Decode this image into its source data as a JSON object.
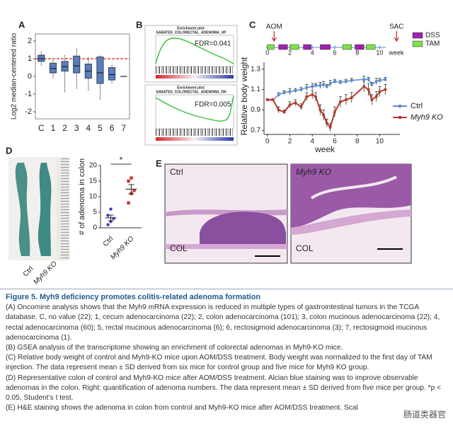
{
  "figure": {
    "panel_labels": [
      "A",
      "B",
      "C",
      "D",
      "E"
    ],
    "gsea": [
      {
        "title_lines": [
          "Enrichment plot:",
          "SABATES_COLORECTAL_ADENOMA_UP"
        ],
        "fdr": "FDR=0.041"
      },
      {
        "title_lines": [
          "Enrichment plot:",
          "SABATES_COLORECTAL_ADENOMA_DN"
        ],
        "fdr": "FDR=0.005"
      }
    ],
    "colon_photo": {
      "labels": [
        "Ctrl",
        "Myh9 KO"
      ]
    },
    "histology": [
      {
        "label": "Ctrl",
        "region": "COL"
      },
      {
        "label": "Myh9 KO",
        "region": "COL"
      }
    ],
    "caption": {
      "title": "Figure 5.  Myh9 deficiency promotes colitis-related adenoma formation",
      "paragraphs": [
        "(A) Oncomine analysis shows that the Myh9 mRNA expression is reduced in multiple types of gastrointestinal tumors in the TCGA database. C, no value (22); 1, cecum adenocarcinoma (22); 2, colon adenocarcinoma (101); 3, colon mucinous adenocarcinoma (22); 4, rectal adenocarcinoma (60); 5, rectal mucinous adenocarcinoma (6); 6, rectosigmoid adenocarcinoma (3); 7, rectosigmoid mucinous adenocarcinoma (1).",
        "(B) GSEA analysis of the transcriptome showing an enrichment of colorectal adenomas in Myh9-KO mice.",
        "(C) Relative body weight of control and Myh9-KO mice upon AOM/DSS treatment. Body weight was normalized to the first day of TAM injection. The data represent mean ± SD derived from six mice for control group and five mice for Myh9 KO group.",
        "(D) Representative colon of control and Myh9-KO mice after AOM/DSS treatment. Alcian blue staining was to improve observable adenomas in the colon. Right: quantification of adenoma numbers. The data represent mean ± SD derived from five mice per group. *p < 0.05, Student’s t test.",
        "(E) H&E staining shows the adenoma in colon from control and Myh9-KO mice after AOM/DSS treatment. Scal"
      ]
    },
    "watermark": "肠道类器官"
  },
  "chart_data": [
    {
      "type": "box",
      "y_label": "Log2 median-centered ratio",
      "categories": [
        "C",
        "1",
        "2",
        "3",
        "4",
        "5",
        "6",
        "7"
      ],
      "min": [
        0.6,
        -0.1,
        -0.9,
        -0.7,
        -0.8,
        -1.3,
        -0.4,
        0
      ],
      "q1": [
        0.85,
        0.2,
        0.3,
        0.2,
        -0.1,
        -0.4,
        -0.2,
        0
      ],
      "median": [
        1.0,
        0.45,
        0.55,
        0.6,
        0.3,
        0.2,
        0.1,
        0
      ],
      "q3": [
        1.2,
        0.75,
        0.85,
        1.15,
        0.7,
        1.1,
        0.5,
        0
      ],
      "max": [
        1.4,
        1.0,
        1.2,
        1.6,
        1.1,
        1.2,
        0.7,
        0
      ],
      "color": "#5a7dc0",
      "reference_line": 1,
      "reference_color": "#d42020",
      "ylim": [
        -2.4,
        2.4
      ],
      "yticks": [
        -2,
        -1,
        0,
        1,
        2
      ]
    },
    {
      "type": "line",
      "x_label": "week",
      "y_label": "Relative body weight",
      "x": [
        0,
        0.5,
        1,
        1.5,
        2,
        2.5,
        3,
        3.5,
        4,
        4.3,
        4.7,
        5,
        5.3,
        5.6,
        6,
        6.5,
        7,
        7.5,
        8.6,
        9,
        9.3,
        9.7,
        10,
        10.5
      ],
      "series": [
        {
          "name": "Ctrl",
          "color": "#5b8bd0",
          "values": [
            1.0,
            1.0,
            1.05,
            1.07,
            1.08,
            1.09,
            1.1,
            1.12,
            1.13,
            1.14,
            1.14,
            1.15,
            1.13,
            1.16,
            1.18,
            1.17,
            1.18,
            1.19,
            1.2,
            1.2,
            1.15,
            1.18,
            1.19,
            1.2
          ],
          "errors": [
            0.01,
            0.01,
            0.02,
            0.02,
            0.03,
            0.02,
            0.02,
            0.03,
            0.03,
            0.02,
            0.03,
            0.03,
            0.02,
            0.03,
            0.02,
            0.02,
            0.02,
            0.02,
            0.03,
            0.02,
            0.02,
            0.03,
            0.02,
            0.02
          ]
        },
        {
          "name": "Myh9 KO",
          "color": "#b83a2a",
          "values": [
            1.0,
            1.0,
            0.9,
            0.88,
            0.95,
            0.97,
            0.93,
            1.03,
            1.05,
            1.03,
            0.9,
            0.85,
            0.77,
            0.73,
            0.88,
            0.98,
            1.0,
            1.02,
            1.13,
            1.1,
            1.0,
            1.03,
            1.08,
            1.1
          ],
          "errors": [
            0.01,
            0.01,
            0.03,
            0.02,
            0.03,
            0.03,
            0.03,
            0.04,
            0.04,
            0.04,
            0.05,
            0.05,
            0.04,
            0.04,
            0.05,
            0.05,
            0.05,
            0.05,
            0.05,
            0.06,
            0.05,
            0.05,
            0.05,
            0.05
          ]
        }
      ],
      "xlim": [
        -0.3,
        11.8
      ],
      "xticks": [
        0,
        2,
        4,
        6,
        8,
        10
      ],
      "ylim": [
        0.66,
        1.34
      ],
      "yticks": [
        0.7,
        0.9,
        1.1,
        1.3
      ],
      "timeline": {
        "ticks": [
          0,
          2,
          4,
          6,
          8,
          10
        ],
        "unit_label": "week",
        "annotations": [
          {
            "text": "AOM",
            "x": 0.6
          },
          {
            "text": "SAC",
            "x": 11.5
          }
        ],
        "treatments": [
          {
            "name": "DSS",
            "color": "#a020b0",
            "intervals": [
              [
                1.0,
                1.8
              ],
              [
                3.2,
                3.9
              ],
              [
                4.7,
                5.6
              ],
              [
                7.8,
                8.6
              ]
            ]
          },
          {
            "name": "TAM",
            "color": "#7ee04a",
            "intervals": [
              [
                0,
                0.6
              ],
              [
                2.0,
                2.8
              ],
              [
                6.7,
                7.5
              ],
              [
                8.8,
                9.6
              ]
            ]
          }
        ]
      }
    },
    {
      "type": "scatter",
      "y_label": "# of adenoma in colon",
      "categories": [
        "Ctrl",
        "Myh9 KO"
      ],
      "points": [
        [
          1,
          2,
          3,
          4,
          6
        ],
        [
          8,
          11,
          12,
          15,
          16
        ]
      ],
      "colors": [
        "#3a3ad0",
        "#d03030"
      ],
      "means": [
        3.2,
        12.4
      ],
      "sd": [
        0.9,
        1.5
      ],
      "annotation": "*",
      "ylim": [
        0,
        20
      ],
      "yticks": [
        0,
        5,
        10,
        15,
        20
      ]
    }
  ]
}
